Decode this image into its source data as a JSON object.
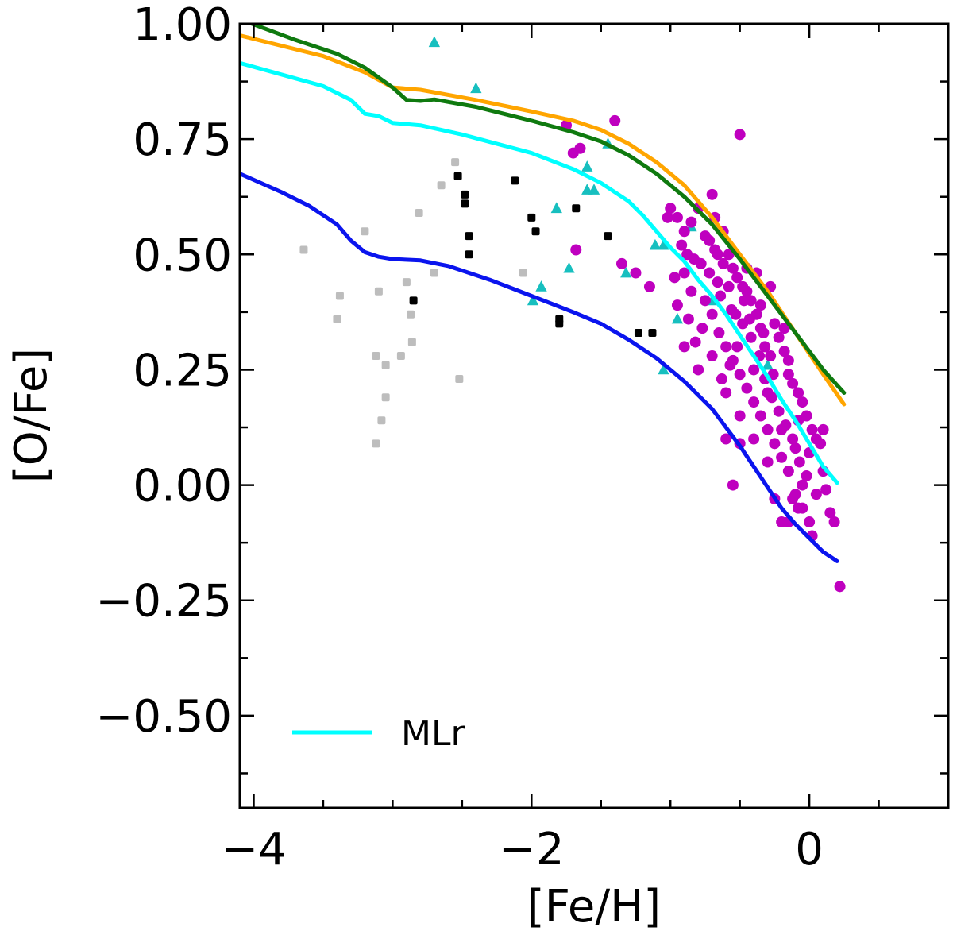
{
  "chart_data": {
    "type": "scatter",
    "xlabel": "[Fe/H]",
    "ylabel": "[O/Fe]",
    "xlim": [
      -4.1,
      1.0
    ],
    "ylim": [
      -0.7,
      1.0
    ],
    "x_ticks": [
      -4,
      -2,
      0
    ],
    "x_tick_labels": [
      "−4",
      "−2",
      "0"
    ],
    "y_ticks": [
      1.0,
      0.75,
      0.5,
      0.25,
      0.0,
      -0.25,
      -0.5
    ],
    "y_tick_labels": [
      "1.00",
      "0.75",
      "0.50",
      "0.25",
      "0.00",
      "−0.25",
      "−0.50"
    ],
    "legend": {
      "position": "bottom-left",
      "entries": [
        {
          "label": "MLr",
          "color": "#00ffff"
        }
      ]
    },
    "lines": [
      {
        "name": "orange",
        "color": "#ffa500",
        "x": [
          -4.1,
          -3.5,
          -3.2,
          -3.0,
          -2.8,
          -2.4,
          -2.0,
          -1.7,
          -1.5,
          -1.3,
          -1.1,
          -0.9,
          -0.7,
          -0.5,
          -0.3,
          -0.1,
          0.1,
          0.25
        ],
        "y": [
          0.975,
          0.93,
          0.895,
          0.862,
          0.857,
          0.835,
          0.81,
          0.79,
          0.77,
          0.74,
          0.7,
          0.65,
          0.58,
          0.5,
          0.42,
          0.33,
          0.24,
          0.175
        ]
      },
      {
        "name": "green",
        "color": "#0f7a0f",
        "x": [
          -4.1,
          -3.7,
          -3.4,
          -3.2,
          -3.0,
          -2.9,
          -2.8,
          -2.7,
          -2.4,
          -2.0,
          -1.7,
          -1.5,
          -1.3,
          -1.1,
          -0.9,
          -0.7,
          -0.5,
          -0.3,
          -0.1,
          0.1,
          0.25
        ],
        "y": [
          1.01,
          0.965,
          0.935,
          0.905,
          0.862,
          0.835,
          0.833,
          0.836,
          0.82,
          0.79,
          0.765,
          0.745,
          0.715,
          0.675,
          0.625,
          0.565,
          0.49,
          0.41,
          0.33,
          0.25,
          0.2
        ]
      },
      {
        "name": "MLr",
        "color": "#00ffff",
        "x": [
          -4.1,
          -3.5,
          -3.3,
          -3.2,
          -3.1,
          -3.0,
          -2.8,
          -2.5,
          -2.0,
          -1.7,
          -1.5,
          -1.3,
          -1.2,
          -1.1,
          -1.0,
          -0.9,
          -0.8,
          -0.7,
          -0.6,
          -0.5,
          -0.4,
          -0.3,
          -0.2,
          -0.1,
          0.0,
          0.1,
          0.2
        ],
        "y": [
          0.915,
          0.865,
          0.835,
          0.805,
          0.8,
          0.785,
          0.78,
          0.76,
          0.72,
          0.685,
          0.655,
          0.615,
          0.585,
          0.55,
          0.515,
          0.485,
          0.445,
          0.41,
          0.37,
          0.325,
          0.28,
          0.235,
          0.185,
          0.14,
          0.09,
          0.04,
          0.005
        ]
      },
      {
        "name": "blue",
        "color": "#0a14ee",
        "x": [
          -4.1,
          -3.8,
          -3.6,
          -3.4,
          -3.3,
          -3.2,
          -3.1,
          -3.0,
          -2.8,
          -2.6,
          -2.3,
          -2.0,
          -1.7,
          -1.5,
          -1.3,
          -1.1,
          -0.9,
          -0.7,
          -0.5,
          -0.3,
          -0.2,
          -0.1,
          0.0,
          0.1,
          0.2
        ],
        "y": [
          0.675,
          0.635,
          0.605,
          0.565,
          0.53,
          0.505,
          0.495,
          0.49,
          0.487,
          0.475,
          0.445,
          0.41,
          0.375,
          0.35,
          0.315,
          0.275,
          0.225,
          0.165,
          0.085,
          -0.005,
          -0.05,
          -0.085,
          -0.115,
          -0.145,
          -0.165
        ]
      }
    ],
    "scatter_series": [
      {
        "name": "gray squares",
        "marker": "square",
        "color": "#bdbdbd",
        "points": [
          [
            -3.64,
            0.51
          ],
          [
            -3.38,
            0.41
          ],
          [
            -3.4,
            0.36
          ],
          [
            -3.2,
            0.55
          ],
          [
            -3.1,
            0.42
          ],
          [
            -3.12,
            0.28
          ],
          [
            -3.05,
            0.26
          ],
          [
            -3.05,
            0.19
          ],
          [
            -3.08,
            0.14
          ],
          [
            -3.12,
            0.09
          ],
          [
            -2.94,
            0.28
          ],
          [
            -2.9,
            0.44
          ],
          [
            -2.87,
            0.37
          ],
          [
            -2.86,
            0.31
          ],
          [
            -2.81,
            0.59
          ],
          [
            -2.7,
            0.46
          ],
          [
            -2.65,
            0.65
          ],
          [
            -2.55,
            0.7
          ],
          [
            -2.52,
            0.23
          ],
          [
            -2.06,
            0.46
          ]
        ]
      },
      {
        "name": "black squares",
        "marker": "square",
        "color": "#000000",
        "points": [
          [
            -2.85,
            0.4
          ],
          [
            -2.53,
            0.67
          ],
          [
            -2.48,
            0.63
          ],
          [
            -2.48,
            0.61
          ],
          [
            -2.45,
            0.54
          ],
          [
            -2.45,
            0.5
          ],
          [
            -2.12,
            0.66
          ],
          [
            -2.0,
            0.58
          ],
          [
            -1.97,
            0.55
          ],
          [
            -1.8,
            0.36
          ],
          [
            -1.8,
            0.35
          ],
          [
            -1.68,
            0.6
          ],
          [
            -1.45,
            0.54
          ],
          [
            -1.23,
            0.33
          ],
          [
            -1.13,
            0.33
          ]
        ]
      },
      {
        "name": "cyan triangles",
        "marker": "triangle",
        "color": "#17bfbf",
        "points": [
          [
            -2.7,
            0.96
          ],
          [
            -2.4,
            0.86
          ],
          [
            -1.99,
            0.4
          ],
          [
            -1.93,
            0.43
          ],
          [
            -1.82,
            0.6
          ],
          [
            -1.73,
            0.47
          ],
          [
            -1.6,
            0.69
          ],
          [
            -1.6,
            0.64
          ],
          [
            -1.55,
            0.64
          ],
          [
            -1.45,
            0.74
          ],
          [
            -1.32,
            0.46
          ],
          [
            -1.11,
            0.52
          ],
          [
            -1.05,
            0.52
          ],
          [
            -1.05,
            0.25
          ],
          [
            -0.95,
            0.36
          ],
          [
            -0.85,
            0.56
          ],
          [
            -0.7,
            0.4
          ],
          [
            -0.3,
            0.26
          ]
        ]
      },
      {
        "name": "magenta circles",
        "marker": "circle",
        "color": "#bf00bf",
        "points": [
          [
            -1.75,
            0.78
          ],
          [
            -1.7,
            0.72
          ],
          [
            -1.65,
            0.73
          ],
          [
            -1.68,
            0.51
          ],
          [
            -1.4,
            0.79
          ],
          [
            -1.35,
            0.48
          ],
          [
            -1.25,
            0.46
          ],
          [
            -1.15,
            0.43
          ],
          [
            -1.0,
            0.6
          ],
          [
            -0.95,
            0.58
          ],
          [
            -0.9,
            0.55
          ],
          [
            -0.85,
            0.57
          ],
          [
            -0.8,
            0.6
          ],
          [
            -0.75,
            0.54
          ],
          [
            -0.7,
            0.63
          ],
          [
            -0.68,
            0.51
          ],
          [
            -0.92,
            0.52
          ],
          [
            -0.88,
            0.5
          ],
          [
            -0.83,
            0.49
          ],
          [
            -0.78,
            0.48
          ],
          [
            -0.72,
            0.46
          ],
          [
            -0.66,
            0.44
          ],
          [
            -0.62,
            0.48
          ],
          [
            -0.58,
            0.5
          ],
          [
            -0.55,
            0.47
          ],
          [
            -0.52,
            0.45
          ],
          [
            -0.48,
            0.43
          ],
          [
            -0.45,
            0.47
          ],
          [
            -0.42,
            0.4
          ],
          [
            -0.38,
            0.37
          ],
          [
            -0.35,
            0.34
          ],
          [
            -0.32,
            0.3
          ],
          [
            -0.28,
            0.28
          ],
          [
            -0.25,
            0.35
          ],
          [
            -0.22,
            0.32
          ],
          [
            -0.18,
            0.29
          ],
          [
            -0.15,
            0.27
          ],
          [
            -0.12,
            0.22
          ],
          [
            -0.08,
            0.2
          ],
          [
            -0.05,
            0.18
          ],
          [
            -0.02,
            0.15
          ],
          [
            0.02,
            0.12
          ],
          [
            0.05,
            0.1
          ],
          [
            0.08,
            0.09
          ],
          [
            0.1,
            0.03
          ],
          [
            0.12,
            -0.01
          ],
          [
            0.15,
            -0.06
          ],
          [
            0.18,
            -0.08
          ],
          [
            0.22,
            -0.22
          ],
          [
            -0.5,
            0.76
          ],
          [
            -0.9,
            0.46
          ],
          [
            -0.85,
            0.42
          ],
          [
            -0.75,
            0.4
          ],
          [
            -0.7,
            0.37
          ],
          [
            -0.65,
            0.33
          ],
          [
            -0.6,
            0.3
          ],
          [
            -0.55,
            0.27
          ],
          [
            -0.5,
            0.24
          ],
          [
            -0.45,
            0.21
          ],
          [
            -0.4,
            0.18
          ],
          [
            -0.35,
            0.15
          ],
          [
            -0.3,
            0.12
          ],
          [
            -0.25,
            0.09
          ],
          [
            -0.2,
            0.06
          ],
          [
            -0.15,
            0.03
          ],
          [
            -0.1,
            -0.02
          ],
          [
            -0.05,
            -0.05
          ],
          [
            0.0,
            -0.08
          ],
          [
            -0.3,
            0.05
          ],
          [
            -0.25,
            -0.03
          ],
          [
            -0.2,
            -0.08
          ],
          [
            -0.15,
            -0.08
          ],
          [
            -0.4,
            0.1
          ],
          [
            -0.5,
            0.09
          ],
          [
            -0.6,
            0.1
          ],
          [
            -0.55,
            0.0
          ],
          [
            -0.95,
            0.39
          ],
          [
            -0.9,
            0.3
          ],
          [
            -0.7,
            0.28
          ],
          [
            -0.8,
            0.25
          ],
          [
            -0.6,
            0.2
          ],
          [
            -0.5,
            0.15
          ],
          [
            -0.4,
            0.25
          ],
          [
            -0.3,
            0.2
          ],
          [
            -0.2,
            0.12
          ],
          [
            -0.1,
            0.08
          ],
          [
            -0.05,
            0.0
          ],
          [
            0.05,
            -0.02
          ],
          [
            0.1,
            0.12
          ],
          [
            0.02,
            -0.11
          ],
          [
            -0.08,
            -0.05
          ],
          [
            -0.12,
            -0.03
          ],
          [
            -0.28,
            0.43
          ],
          [
            -0.35,
            0.39
          ],
          [
            -0.45,
            0.42
          ],
          [
            -0.38,
            0.46
          ],
          [
            -0.62,
            0.55
          ],
          [
            -0.68,
            0.58
          ],
          [
            -0.72,
            0.53
          ],
          [
            -0.66,
            0.5
          ],
          [
            -0.58,
            0.43
          ],
          [
            -0.53,
            0.37
          ],
          [
            -0.48,
            0.35
          ],
          [
            -0.42,
            0.32
          ],
          [
            -0.36,
            0.28
          ],
          [
            -0.32,
            0.23
          ],
          [
            -0.27,
            0.19
          ],
          [
            -0.22,
            0.16
          ],
          [
            -0.17,
            0.13
          ],
          [
            -0.12,
            0.1
          ],
          [
            -0.07,
            0.05
          ],
          [
            -0.02,
            0.02
          ],
          [
            0.0,
            0.07
          ],
          [
            -0.08,
            0.14
          ],
          [
            -0.15,
            0.24
          ],
          [
            -0.18,
            0.34
          ],
          [
            -0.52,
            0.3
          ],
          [
            -0.57,
            0.26
          ],
          [
            -0.63,
            0.23
          ],
          [
            -0.77,
            0.34
          ],
          [
            -0.82,
            0.31
          ],
          [
            -0.87,
            0.36
          ],
          [
            -0.97,
            0.45
          ],
          [
            -1.02,
            0.58
          ],
          [
            -0.64,
            0.41
          ],
          [
            -0.56,
            0.38
          ],
          [
            -0.47,
            0.4
          ],
          [
            -0.43,
            0.36
          ],
          [
            -0.33,
            0.33
          ],
          [
            -0.26,
            0.24
          ]
        ]
      }
    ]
  }
}
